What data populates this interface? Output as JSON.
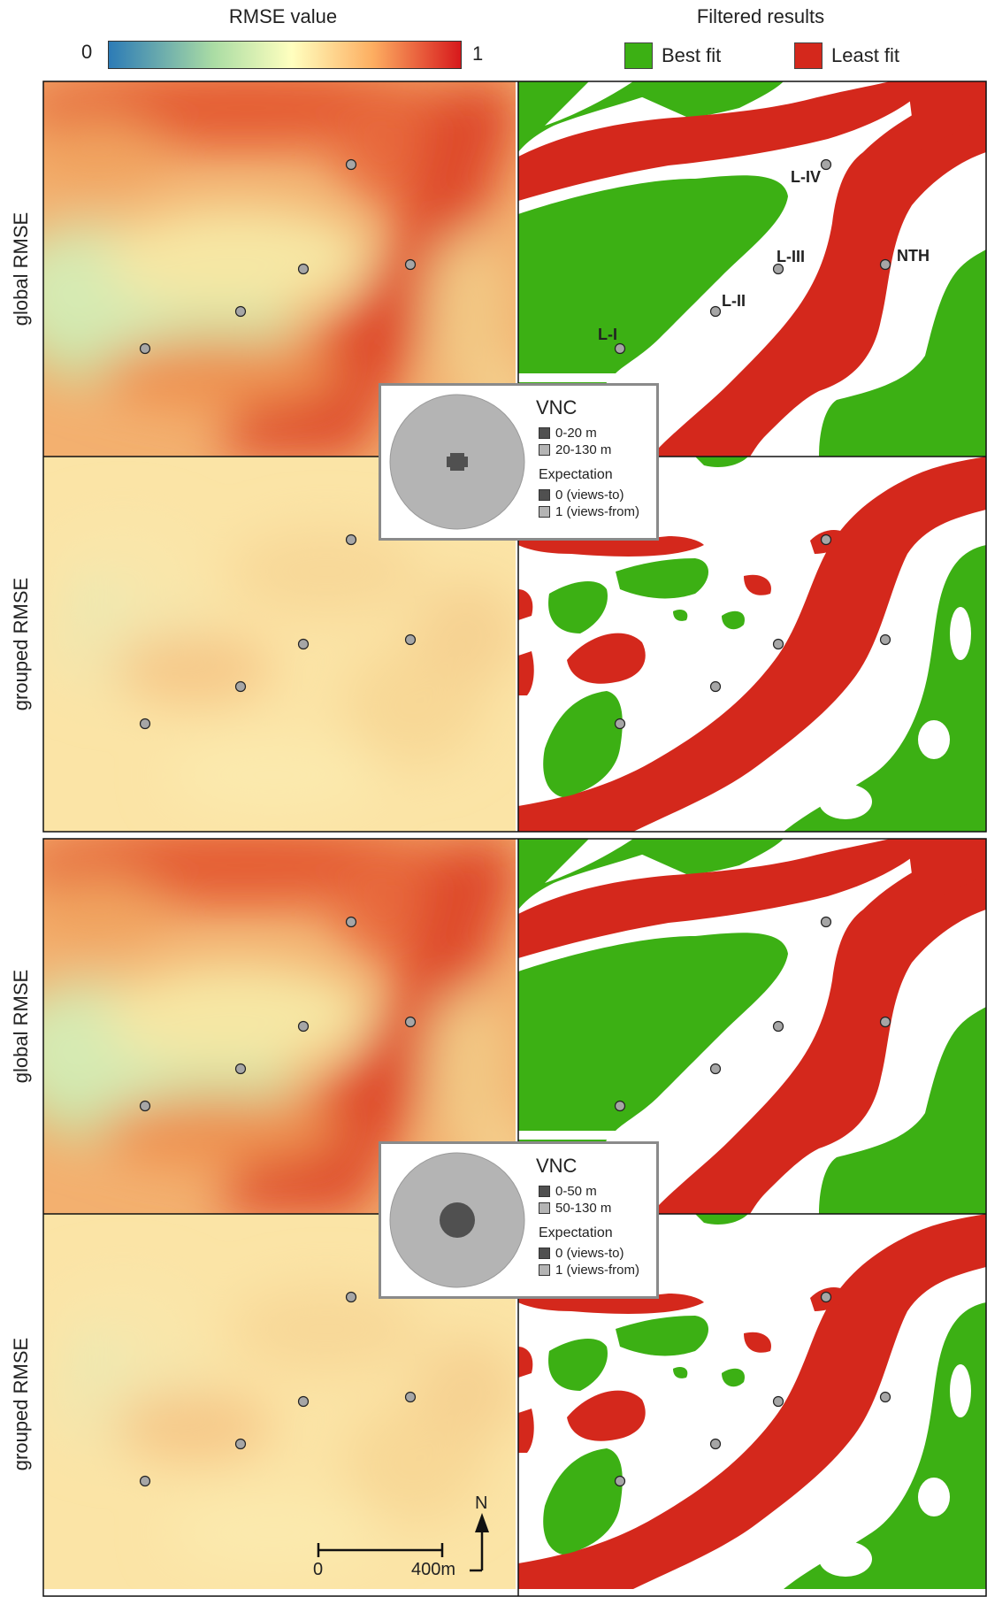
{
  "legend": {
    "rmse_title": "RMSE value",
    "rmse_min": "0",
    "rmse_max": "1",
    "filtered_title": "Filtered results",
    "best_fit": "Best fit",
    "least_fit": "Least fit",
    "colors": {
      "best": "#3cb014",
      "least": "#d4281c",
      "ramp": [
        "#2c7bb6",
        "#abdda4",
        "#ffffbf",
        "#fdae61",
        "#d7191c"
      ]
    }
  },
  "rows": [
    {
      "label": "global RMSE"
    },
    {
      "label": "grouped RMSE"
    },
    {
      "label": "global RMSE"
    },
    {
      "label": "grouped RMSE"
    }
  ],
  "sites": [
    {
      "name": "L-I"
    },
    {
      "name": "L-II"
    },
    {
      "name": "L-III"
    },
    {
      "name": "L-IV"
    },
    {
      "name": "NTH"
    }
  ],
  "vnc_boxes": [
    {
      "title": "VNC",
      "range_inner": "0-20 m",
      "range_outer": "20-130 m",
      "expectation_title": "Expectation",
      "exp_0": "0 (views-to)",
      "exp_1": "1 (views-from)"
    },
    {
      "title": "VNC",
      "range_inner": "0-50 m",
      "range_outer": "50-130 m",
      "expectation_title": "Expectation",
      "exp_0": "0 (views-to)",
      "exp_1": "1 (views-from)"
    }
  ],
  "scalebar": {
    "start": "0",
    "end": "400m"
  },
  "north": "N"
}
